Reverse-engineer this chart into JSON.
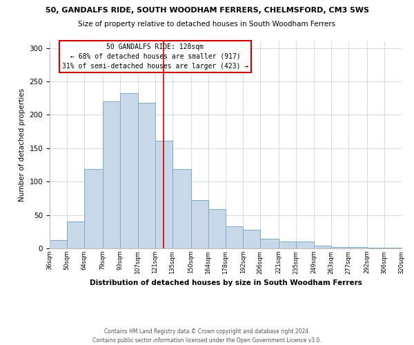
{
  "title1": "50, GANDALFS RIDE, SOUTH WOODHAM FERRERS, CHELMSFORD, CM3 5WS",
  "title2": "Size of property relative to detached houses in South Woodham Ferrers",
  "xlabel": "Distribution of detached houses by size in South Woodham Ferrers",
  "ylabel": "Number of detached properties",
  "bin_labels": [
    "36sqm",
    "50sqm",
    "64sqm",
    "79sqm",
    "93sqm",
    "107sqm",
    "121sqm",
    "135sqm",
    "150sqm",
    "164sqm",
    "178sqm",
    "192sqm",
    "206sqm",
    "221sqm",
    "235sqm",
    "249sqm",
    "263sqm",
    "277sqm",
    "292sqm",
    "306sqm",
    "320sqm"
  ],
  "bar_values": [
    12,
    40,
    119,
    220,
    232,
    218,
    161,
    119,
    72,
    59,
    33,
    28,
    14,
    10,
    10,
    4,
    2,
    2,
    1,
    1
  ],
  "bar_color": "#c8d8e8",
  "bar_edge_color": "#7aaacc",
  "vline_x": 128,
  "vline_color": "#cc0000",
  "annotation_title": "50 GANDALFS RIDE: 128sqm",
  "annotation_line1": "← 68% of detached houses are smaller (917)",
  "annotation_line2": "31% of semi-detached houses are larger (423) →",
  "annotation_box_color": "#ffffff",
  "annotation_box_edge": "#cc0000",
  "ylim": [
    0,
    310
  ],
  "xlim_left": 36,
  "xlim_right": 320,
  "footer1": "Contains HM Land Registry data © Crown copyright and database right 2024.",
  "footer2": "Contains public sector information licensed under the Open Government Licence v3.0.",
  "bin_edges": [
    36,
    50,
    64,
    79,
    93,
    107,
    121,
    135,
    150,
    164,
    178,
    192,
    206,
    221,
    235,
    249,
    263,
    277,
    292,
    306,
    320
  ]
}
